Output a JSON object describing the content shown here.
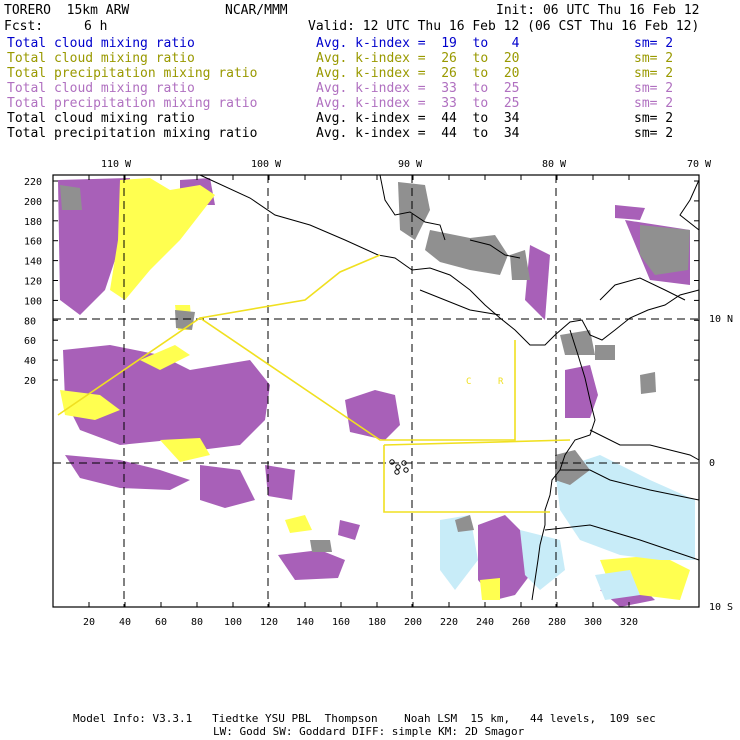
{
  "header": {
    "model": "TORERO  15km ARW",
    "org": "NCAR/MMM",
    "init": "Init: 06 UTC Thu 16 Feb 12",
    "fcst_label": "Fcst:",
    "fcst_value": "6 h",
    "valid": "Valid: 12 UTC Thu 16 Feb 12 (06 CST Thu 16 Feb 12)"
  },
  "legend": [
    {
      "field": "Total cloud mixing ratio",
      "kindex": "Avg. k-index =  19  to   4",
      "sm": "sm= 2",
      "color": "#0000cc"
    },
    {
      "field": "Total cloud mixing ratio",
      "kindex": "Avg. k-index =  26  to  20",
      "sm": "sm= 2",
      "color": "#999900"
    },
    {
      "field": "Total precipitation mixing ratio",
      "kindex": "Avg. k-index =  26  to  20",
      "sm": "sm= 2",
      "color": "#999900"
    },
    {
      "field": "Total cloud mixing ratio",
      "kindex": "Avg. k-index =  33  to  25",
      "sm": "sm= 2",
      "color": "#b070c0"
    },
    {
      "field": "Total precipitation mixing ratio",
      "kindex": "Avg. k-index =  33  to  25",
      "sm": "sm= 2",
      "color": "#b070c0"
    },
    {
      "field": "Total cloud mixing ratio",
      "kindex": "Avg. k-index =  44  to  34",
      "sm": "sm= 2",
      "color": "#000000"
    },
    {
      "field": "Total precipitation mixing ratio",
      "kindex": "Avg. k-index =  44  to  34",
      "sm": "sm= 2",
      "color": "#000000"
    }
  ],
  "map": {
    "lon_labels": [
      "110 W",
      "100 W",
      "90 W",
      "80 W",
      "70 W"
    ],
    "lat_labels": [
      "10 N",
      "0",
      "10 S"
    ],
    "y_ticks": [
      "220",
      "200",
      "180",
      "160",
      "140",
      "120",
      "100",
      "80",
      "60",
      "40",
      "20"
    ],
    "x_ticks": [
      "20",
      "40",
      "60",
      "80",
      "100",
      "120",
      "140",
      "160",
      "180",
      "200",
      "220",
      "240",
      "260",
      "280",
      "300",
      "320"
    ],
    "colors": {
      "purple": "#a860b8",
      "gray": "#909090",
      "yellow": "#ffff50",
      "lightblue": "#c8ecf8",
      "boundary": "#f0e020"
    },
    "region_labels": [
      "C",
      "R"
    ]
  },
  "footer": {
    "line1": "Model Info: V3.3.1   Tiedtke YSU PBL  Thompson    Noah LSM  15 km,   44 levels,  109 sec",
    "line2": "LW: Godd SW: Goddard DIFF: simple KM: 2D Smagor"
  }
}
